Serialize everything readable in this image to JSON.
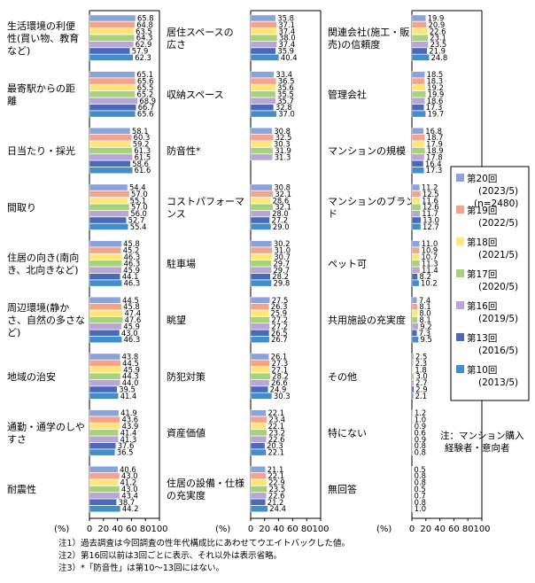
{
  "chart_data": {
    "type": "bar",
    "orientation": "horizontal",
    "xlim": [
      0,
      100
    ],
    "xticks": [
      0,
      20,
      40,
      60,
      80,
      100
    ],
    "unit_label": "(%)",
    "series": [
      {
        "name": "第20回",
        "period": "(2023/5)",
        "color": "#8AA3DA"
      },
      {
        "name": "第19回",
        "period": "(2022/5)",
        "color": "#F4A48A"
      },
      {
        "name": "第18回",
        "period": "(2021/5)",
        "color": "#FFE57A"
      },
      {
        "name": "第17回",
        "period": "(2020/5)",
        "color": "#A6D27A"
      },
      {
        "name": "第16回",
        "period": "(2019/5)",
        "color": "#B9A6D4"
      },
      {
        "name": "第13回",
        "period": "(2016/5)",
        "color": "#4A69BB"
      },
      {
        "name": "第10回",
        "period": "(2013/5)",
        "color": "#3F8FCC"
      }
    ],
    "legend_extra": "(n=2480)",
    "legend_placement": "right",
    "panels": [
      {
        "categories": [
          {
            "label": [
              "生活環境の利便",
              "性(買い物、教育",
              "など)"
            ],
            "values": [
              65.8,
              64.8,
              63.5,
              64.3,
              62.9,
              57.9,
              62.3
            ]
          },
          {
            "label": [
              "最寄駅からの距",
              "離"
            ],
            "values": [
              65.1,
              65.6,
              65.5,
              65.2,
              68.9,
              66.7,
              65.6
            ]
          },
          {
            "label": [
              "日当たり・採光"
            ],
            "values": [
              58.1,
              60.3,
              59.2,
              61.3,
              61.5,
              58.6,
              61.6
            ]
          },
          {
            "label": [
              "間取り"
            ],
            "values": [
              54.4,
              57.0,
              55.1,
              57.0,
              56.0,
              52.7,
              55.4
            ]
          },
          {
            "label": [
              "住居の向き(南向",
              "き、北向きなど)"
            ],
            "values": [
              45.8,
              45.2,
              46.3,
              46.3,
              45.9,
              44.1,
              46.3
            ]
          },
          {
            "label": [
              "周辺環境(静か",
              "さ、自然の多さな",
              "ど)"
            ],
            "values": [
              44.5,
              45.8,
              47.4,
              47.6,
              45.9,
              43.0,
              46.3
            ]
          },
          {
            "label": [
              "地域の治安"
            ],
            "values": [
              43.8,
              44.5,
              45.9,
              44.3,
              44.0,
              39.5,
              41.4
            ]
          },
          {
            "label": [
              "通勤・通学のしや",
              "すさ"
            ],
            "values": [
              41.9,
              43.6,
              43.9,
              41.4,
              41.3,
              37.6,
              36.5
            ]
          },
          {
            "label": [
              "耐震性"
            ],
            "values": [
              40.6,
              43.0,
              41.2,
              43.0,
              43.4,
              38.7,
              44.2
            ]
          }
        ]
      },
      {
        "categories": [
          {
            "label": [
              "居住スペースの",
              "広さ"
            ],
            "values": [
              35.8,
              37.1,
              37.4,
              38.0,
              37.4,
              35.9,
              40.4
            ]
          },
          {
            "label": [
              "収納スペース"
            ],
            "values": [
              33.4,
              36.5,
              35.6,
              35.5,
              35.7,
              32.8,
              37.0
            ]
          },
          {
            "label": [
              "防音性*"
            ],
            "values": [
              30.8,
              32.5,
              30.3,
              31.9,
              31.3,
              null,
              null
            ]
          },
          {
            "label": [
              "コストパフォーマ",
              "ンス"
            ],
            "values": [
              30.8,
              32.1,
              28.6,
              32.1,
              28.0,
              27.2,
              29.0
            ]
          },
          {
            "label": [
              "駐車場"
            ],
            "values": [
              30.2,
              31.0,
              30.7,
              29.7,
              29.7,
              28.2,
              29.8
            ]
          },
          {
            "label": [
              "眺望"
            ],
            "values": [
              27.5,
              26.3,
              25.9,
              27.2,
              27.2,
              26.5,
              26.7
            ]
          },
          {
            "label": [
              "防犯対策"
            ],
            "values": [
              26.1,
              27.3,
              27.1,
              28.2,
              26.6,
              24.9,
              30.3
            ]
          },
          {
            "label": [
              "資産価値"
            ],
            "values": [
              22.1,
              23.4,
              22.1,
              23.2,
              22.6,
              20.3,
              22.1
            ]
          },
          {
            "label": [
              "住居の設備・仕様",
              "の充実度"
            ],
            "values": [
              21.1,
              22.1,
              22.9,
              23.5,
              22.6,
              21.2,
              24.4
            ]
          }
        ]
      },
      {
        "categories": [
          {
            "label": [
              "関連会社(施工・販",
              "売)の信頼度"
            ],
            "values": [
              19.9,
              20.9,
              22.6,
              23.1,
              23.5,
              21.9,
              24.8
            ]
          },
          {
            "label": [
              "管理会社"
            ],
            "values": [
              18.5,
              18.3,
              19.2,
              19.9,
              18.6,
              17.3,
              19.7
            ]
          },
          {
            "label": [
              "マンションの規模"
            ],
            "values": [
              16.8,
              18.7,
              17.9,
              18.9,
              17.8,
              16.4,
              17.3
            ]
          },
          {
            "label": [
              "マンションのブラン",
              "ド"
            ],
            "values": [
              11.2,
              12.5,
              11.6,
              12.6,
              11.7,
              13.0,
              12.7
            ]
          },
          {
            "label": [
              "ペット可"
            ],
            "values": [
              11.0,
              10.9,
              10.7,
              11.3,
              11.4,
              8.2,
              10.2
            ]
          },
          {
            "label": [
              "共用施設の充実度"
            ],
            "values": [
              7.4,
              8.1,
              8.0,
              8.1,
              9.2,
              7.3,
              9.5
            ]
          },
          {
            "label": [
              "その他"
            ],
            "values": [
              2.5,
              2.3,
              1.8,
              3.0,
              2.7,
              2.9,
              2.1
            ]
          },
          {
            "label": [
              "特にない"
            ],
            "values": [
              1.2,
              1.0,
              0.9,
              0.6,
              0.9,
              0.8,
              0.8
            ]
          },
          {
            "label": [
              "無回答"
            ],
            "values": [
              0.5,
              0.8,
              0.8,
              0.5,
              0.7,
              0.8,
              1.0
            ]
          }
        ]
      }
    ]
  },
  "legend_note": [
    "注：マンション購入",
    "経験者・意向者"
  ],
  "notes": [
    "注1）過去調査は今回調査の性年代構成比にあわせてウエイトバックした値。",
    "注2）第16回以前は3回ごとに表示、それ以外は表示省略。",
    "注3）*「防音性」は第10～13回にはない。"
  ]
}
